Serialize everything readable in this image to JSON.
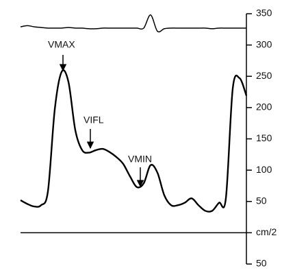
{
  "chart_data": {
    "type": "line",
    "series": [
      {
        "color": "#000000",
        "values": [
          329,
          331,
          329,
          328,
          327,
          327,
          327,
          328,
          327,
          327,
          326,
          326,
          327,
          327,
          327,
          327,
          327,
          327,
          327,
          348,
          322,
          326,
          327,
          327,
          327,
          327,
          327,
          327,
          326,
          327,
          327,
          327,
          327,
          327
        ]
      },
      {
        "color": "#000000",
        "values": [
          52,
          46,
          42,
          44,
          66,
          197,
          257,
          241,
          164,
          132,
          128,
          132,
          134,
          129,
          121,
          110,
          90,
          73,
          79,
          108,
          96,
          60,
          44,
          44,
          48,
          55,
          44,
          35,
          35,
          48,
          55,
          230,
          247,
          219
        ]
      }
    ],
    "ylim": [
      -50,
      350
    ],
    "yticks": [
      350,
      300,
      250,
      200,
      150,
      100,
      50,
      {
        "value": 0,
        "label": "cm/2"
      },
      {
        "value": -50,
        "label": "50"
      }
    ],
    "annotations": [
      "VMAX",
      "VIFL",
      "VMIN"
    ]
  }
}
